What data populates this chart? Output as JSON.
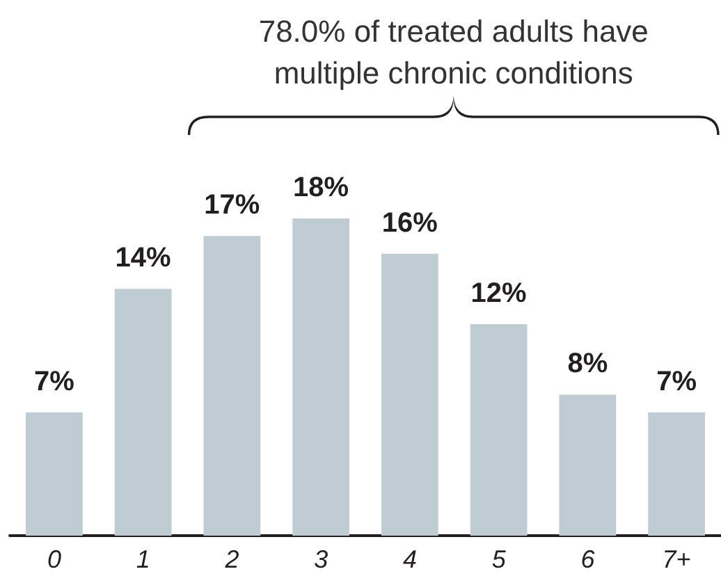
{
  "chart_data": {
    "type": "bar",
    "categories": [
      "0",
      "1",
      "2",
      "3",
      "4",
      "5",
      "6",
      "7+"
    ],
    "values": [
      7,
      14,
      17,
      18,
      16,
      12,
      8,
      7
    ],
    "value_labels": [
      "7%",
      "14%",
      "17%",
      "18%",
      "16%",
      "12%",
      "8%",
      "7%"
    ],
    "color": "#bfccd4",
    "annotations": [
      "78.0% of treated adults have multiple chronic conditions"
    ]
  }
}
